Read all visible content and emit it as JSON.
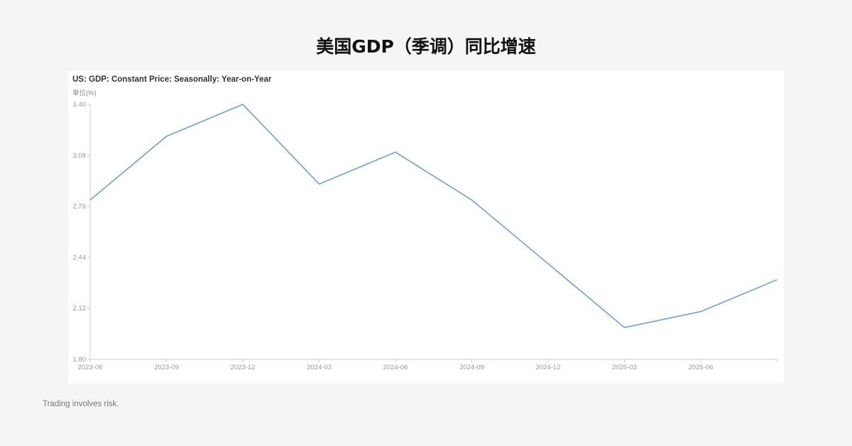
{
  "header": {
    "title": "美国GDP（季调）同比增速"
  },
  "footer": {
    "disclaimer": "Trading involves risk."
  },
  "chart_data": {
    "type": "line",
    "title": "US: GDP: Constant Price: Seasonally: Year-on-Year",
    "ylabel": "单位(%)",
    "xlabel": "",
    "x": [
      "2023-06",
      "2023-09",
      "2023-12",
      "2024-03",
      "2024-06",
      "2024-09",
      "2024-12",
      "2025-03",
      "2025-06",
      "2025-09"
    ],
    "x_tick_labels": [
      "2023-06",
      "2023-09",
      "2023-12",
      "2024-03",
      "2024-06",
      "2024-09",
      "2024-12",
      "2025-03",
      "2025-06"
    ],
    "y_tick_labels": [
      "1.80",
      "2.12",
      "2.44",
      "2.76",
      "3.08",
      "3.40"
    ],
    "ylim": [
      1.8,
      3.4
    ],
    "grid": false,
    "series": [
      {
        "values": [
          2.8,
          3.2,
          3.4,
          2.9,
          3.1,
          2.8,
          2.4,
          2.0,
          2.1,
          2.3
        ],
        "color": "#6f9fe0"
      }
    ]
  }
}
